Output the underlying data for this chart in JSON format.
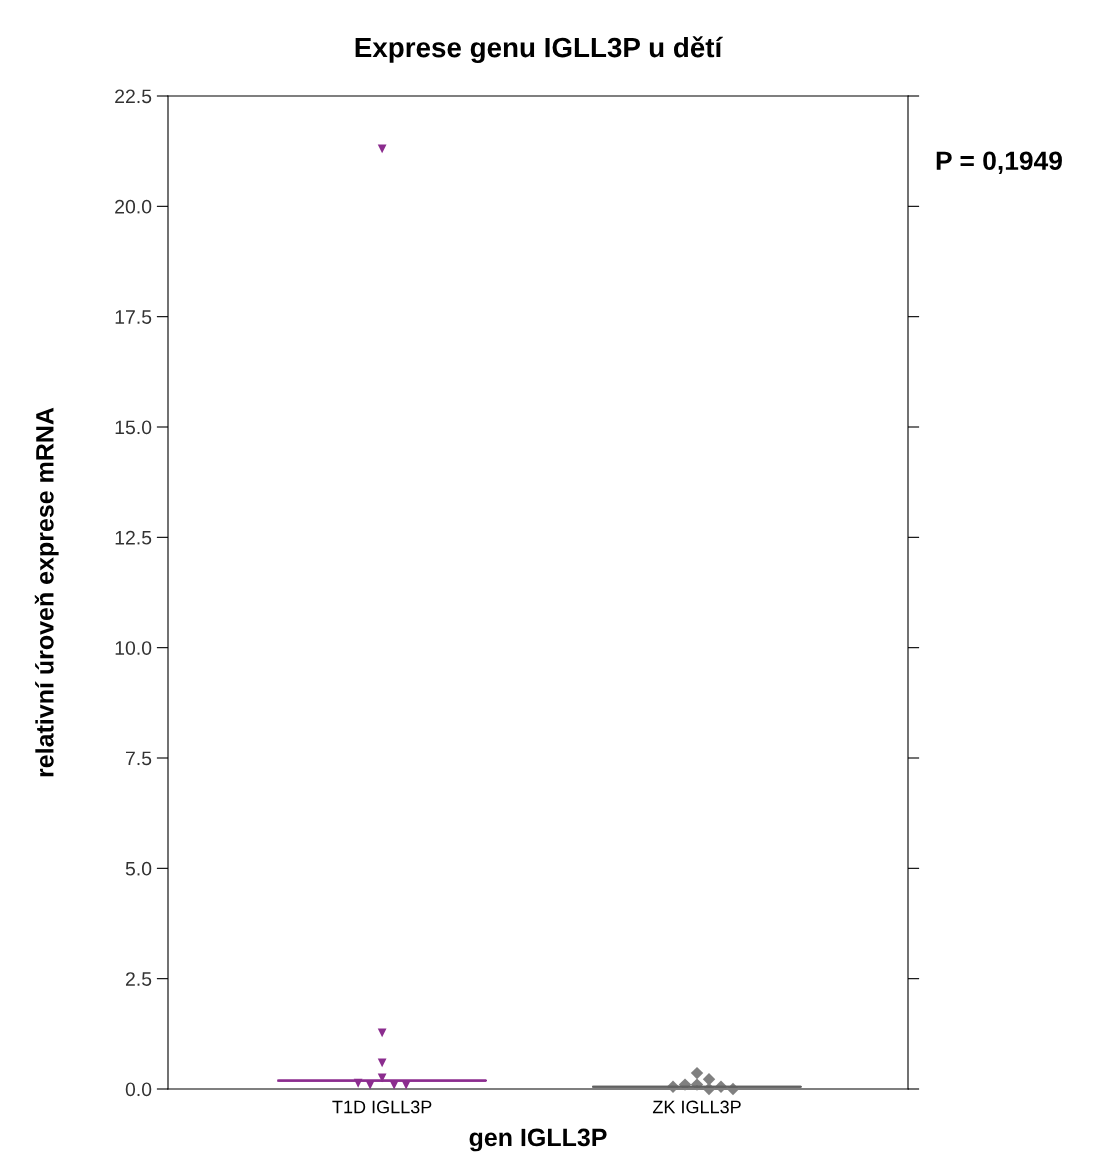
{
  "chart_data": {
    "type": "scatter",
    "title": "Exprese genu IGLL3P u dětí",
    "xlabel": "gen IGLL3P",
    "ylabel": "relativní úroveň exprese mRNA",
    "categories": [
      "T1D IGLL3P",
      "ZK IGLL3P"
    ],
    "series": [
      {
        "color": "#8b2c8e",
        "marker": "triangle",
        "x": [
          "T1D IGLL3P",
          "T1D IGLL3P",
          "T1D IGLL3P",
          "T1D IGLL3P",
          "T1D IGLL3P",
          "T1D IGLL3P",
          "T1D IGLL3P",
          "T1D IGLL3P"
        ],
        "values": [
          21.3,
          1.27,
          0.59,
          0.25,
          0.09,
          0.09,
          0.09,
          0.13
        ]
      },
      {
        "color": "#808080",
        "marker": "diamond",
        "x": [
          "ZK IGLL3P",
          "ZK IGLL3P",
          "ZK IGLL3P",
          "ZK IGLL3P",
          "ZK IGLL3P",
          "ZK IGLL3P",
          "ZK IGLL3P",
          "ZK IGLL3P"
        ],
        "values": [
          0.36,
          0.22,
          0.1,
          0.1,
          0.05,
          0.05,
          0.0,
          0.0
        ]
      },
      {
        "type": "box",
        "color": "#8b2c8e",
        "boxes": [
          {
            "low": 0.19,
            "q1": 0.19,
            "median": 0.19,
            "q3": 0.19,
            "high": 0.19
          },
          null
        ]
      },
      {
        "type": "box",
        "color": "#606060",
        "boxes": [
          null,
          {
            "low": 0.05,
            "q1": 0.05,
            "median": 0.05,
            "q3": 0.05,
            "high": 0.05
          }
        ]
      }
    ],
    "ylim": [
      0,
      22.5
    ],
    "yticks": [
      {
        "value": 0,
        "label": "0.0"
      },
      {
        "value": 2.5,
        "label": "2.5"
      },
      {
        "value": 5,
        "label": "5.0"
      },
      {
        "value": 7.5,
        "label": "7.5"
      },
      {
        "value": 10,
        "label": "10.0"
      },
      {
        "value": 12.5,
        "label": "12.5"
      },
      {
        "value": 15,
        "label": "15.0"
      },
      {
        "value": 17.5,
        "label": "17.5"
      },
      {
        "value": 20,
        "label": "20.0"
      },
      {
        "value": 22.5,
        "label": "22.5"
      }
    ],
    "annotations": [
      "P = 0,1949"
    ]
  }
}
